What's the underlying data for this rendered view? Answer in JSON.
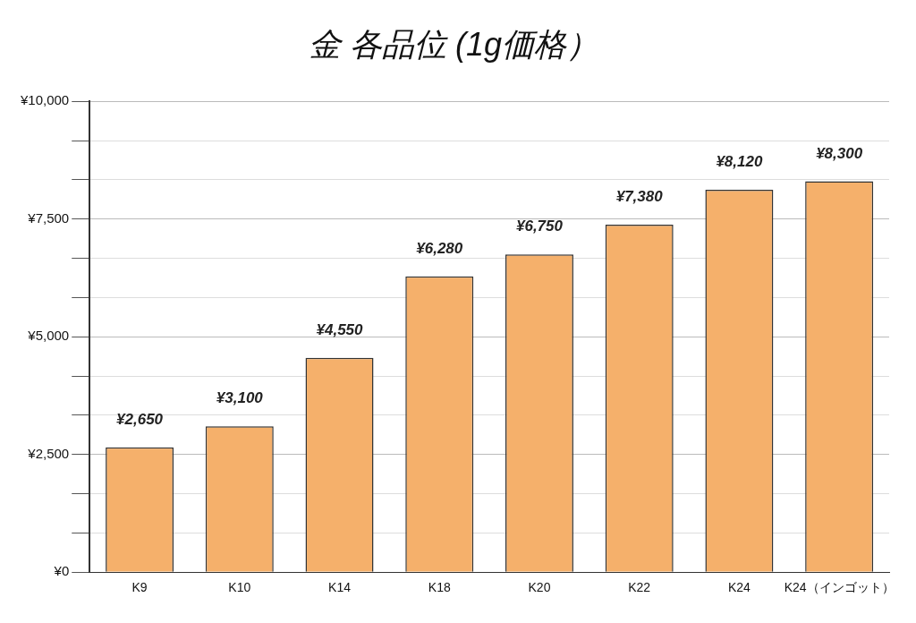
{
  "chart_data": {
    "type": "bar",
    "title": "金 各品位 (1g価格）",
    "categories": [
      "K9",
      "K10",
      "K14",
      "K18",
      "K20",
      "K22",
      "K24",
      "K24（インゴット）"
    ],
    "values": [
      2650,
      3100,
      4550,
      6280,
      6750,
      7380,
      8120,
      8300
    ],
    "value_labels": [
      "¥2,650",
      "¥3,100",
      "¥4,550",
      "¥6,280",
      "¥6,750",
      "¥7,380",
      "¥8,120",
      "¥8,300"
    ],
    "color": "#f5b06b",
    "ylim": [
      0,
      10000
    ],
    "yticks": [
      {
        "value": 0,
        "label": "¥0"
      },
      {
        "value": 833,
        "label": null
      },
      {
        "value": 1667,
        "label": null
      },
      {
        "value": 2500,
        "label": "¥2,500"
      },
      {
        "value": 3333,
        "label": null
      },
      {
        "value": 4167,
        "label": null
      },
      {
        "value": 5000,
        "label": "¥5,000"
      },
      {
        "value": 5833,
        "label": null
      },
      {
        "value": 6667,
        "label": null
      },
      {
        "value": 7500,
        "label": "¥7,500"
      },
      {
        "value": 8333,
        "label": null
      },
      {
        "value": 9167,
        "label": null
      },
      {
        "value": 10000,
        "label": "¥10,000"
      }
    ],
    "grid": "y"
  }
}
